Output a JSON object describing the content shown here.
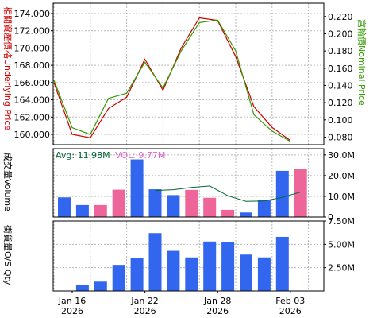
{
  "chart_data": [
    {
      "type": "line",
      "ylabel": "相關資產價格Underlying Price",
      "y2label": "窩輪價Nominal Price",
      "x": [
        "2026-01-15",
        "2026-01-16",
        "2026-01-19",
        "2026-01-20",
        "2026-01-21",
        "2026-01-22",
        "2026-01-23",
        "2026-01-26",
        "2026-01-27",
        "2026-01-28",
        "2026-01-29",
        "2026-01-30",
        "2026-02-02",
        "2026-02-03",
        "2026-02-04"
      ],
      "ylim": [
        158800,
        175200
      ],
      "y2lim": [
        0.0712,
        0.2355
      ],
      "yticks": [
        "160.000",
        "162.000",
        "164.000",
        "166.000",
        "168.000",
        "170.000",
        "172.000",
        "174.000"
      ],
      "y2ticks": [
        "0.080",
        "0.100",
        "0.120",
        "0.140",
        "0.160",
        "0.180",
        "0.200",
        "0.220"
      ],
      "series": [
        {
          "axis": "left",
          "color": "#cc0000",
          "values": [
            166000,
            160000,
            159600,
            163000,
            164300,
            168700,
            165100,
            170000,
            173500,
            173200,
            169000,
            163200,
            160800,
            159300,
            null
          ]
        },
        {
          "axis": "right",
          "color": "#339900",
          "values": [
            0.146,
            0.091,
            0.083,
            0.125,
            0.131,
            0.167,
            0.137,
            0.18,
            0.213,
            0.216,
            0.18,
            0.106,
            0.087,
            0.075,
            null
          ]
        }
      ]
    },
    {
      "type": "bar",
      "legend": {
        "avg": "Avg: 11.98M",
        "vol": "VOL: 9.77M"
      },
      "ylabel": "成交量Volume",
      "ylim": [
        0,
        33000000
      ],
      "yticks": [
        "0",
        "10.0M",
        "20.0M",
        "30.0M"
      ],
      "bars": [
        {
          "v": 9500000,
          "c": "#3366ee"
        },
        {
          "v": 5800000,
          "c": "#3366ee"
        },
        {
          "v": 5800000,
          "c": "#ee6699"
        },
        {
          "v": 13200000,
          "c": "#ee6699"
        },
        {
          "v": 27800000,
          "c": "#3366ee"
        },
        {
          "v": 13400000,
          "c": "#3366ee"
        },
        {
          "v": 10600000,
          "c": "#3366ee"
        },
        {
          "v": 13100000,
          "c": "#ee6699"
        },
        {
          "v": 9300000,
          "c": "#ee6699"
        },
        {
          "v": 3500000,
          "c": "#ee6699"
        },
        {
          "v": 2200000,
          "c": "#3366ee"
        },
        {
          "v": 8400000,
          "c": "#3366ee"
        },
        {
          "v": 22300000,
          "c": "#3366ee"
        },
        {
          "v": 23400000,
          "c": "#ee6699"
        }
      ],
      "avg_line": {
        "color": "#006633",
        "values": [
          null,
          null,
          null,
          null,
          null,
          12800000,
          13200000,
          14300000,
          15000000,
          10300000,
          7600000,
          7800000,
          9500000,
          12100000
        ]
      }
    },
    {
      "type": "bar",
      "ylabel": "街貨量O/S Qty.",
      "ylim": [
        0,
        7500000
      ],
      "yticks": [
        "2.50M",
        "5.00M",
        "7.50M"
      ],
      "bars": [
        {
          "v": 0,
          "c": "#3366ee"
        },
        {
          "v": 600000,
          "c": "#3366ee"
        },
        {
          "v": 1000000,
          "c": "#3366ee"
        },
        {
          "v": 2800000,
          "c": "#3366ee"
        },
        {
          "v": 3500000,
          "c": "#3366ee"
        },
        {
          "v": 6200000,
          "c": "#3366ee"
        },
        {
          "v": 4300000,
          "c": "#3366ee"
        },
        {
          "v": 3600000,
          "c": "#3366ee"
        },
        {
          "v": 5300000,
          "c": "#3366ee"
        },
        {
          "v": 5200000,
          "c": "#3366ee"
        },
        {
          "v": 3900000,
          "c": "#3366ee"
        },
        {
          "v": 3600000,
          "c": "#3366ee"
        },
        {
          "v": 5800000,
          "c": "#3366ee"
        },
        {
          "v": 0,
          "c": "#3366ee"
        }
      ]
    }
  ],
  "x_axis": {
    "labels": [
      {
        "i": 0,
        "top": "Jan 16",
        "bottom": "2026"
      },
      {
        "i": 4,
        "top": "Jan 22",
        "bottom": "2026"
      },
      {
        "i": 8,
        "top": "Jan 28",
        "bottom": "2026"
      },
      {
        "i": 12,
        "top": "Feb 03",
        "bottom": "2026"
      }
    ]
  }
}
